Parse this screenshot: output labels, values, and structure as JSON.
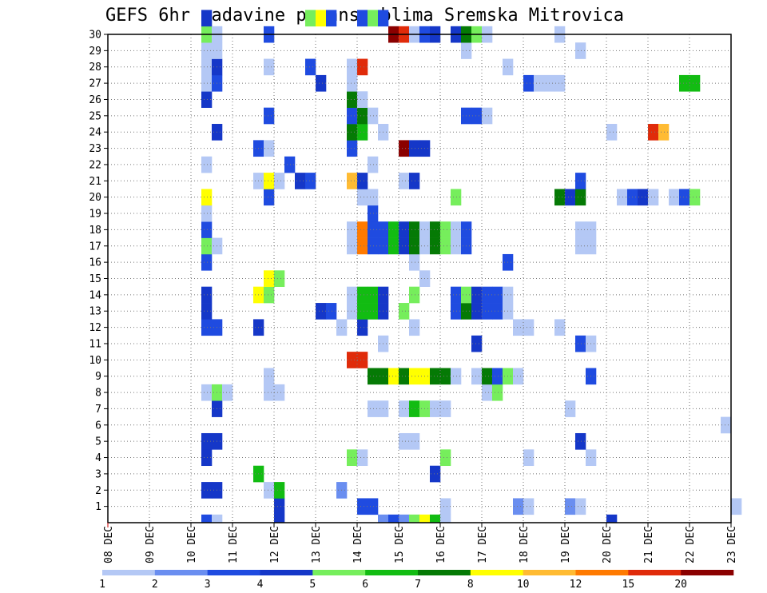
{
  "chart_data": {
    "type": "heatmap",
    "title": "GEFS 6hr padavine po ansamblima Sremska Mitrovica",
    "xlabel": "",
    "ylabel": "",
    "x_ticks": [
      "08 DEC",
      "09 DEC",
      "10 DEC",
      "11 DEC",
      "12 DEC",
      "13 DEC",
      "14 DEC",
      "15 DEC",
      "16 DEC",
      "17 DEC",
      "18 DEC",
      "19 DEC",
      "20 DEC",
      "21 DEC",
      "22 DEC",
      "23 DEC"
    ],
    "y_ticks": [
      "1",
      "2",
      "3",
      "4",
      "5",
      "6",
      "7",
      "8",
      "9",
      "10",
      "11",
      "12",
      "13",
      "14",
      "15",
      "16",
      "17",
      "18",
      "19",
      "20",
      "21",
      "22",
      "23",
      "24",
      "25",
      "26",
      "27",
      "28",
      "29",
      "30"
    ],
    "xlim_steps": [
      0,
      60
    ],
    "ylim_members": [
      0,
      30
    ],
    "grid": true,
    "colorbar": {
      "levels": [
        "1",
        "2",
        "3",
        "4",
        "5",
        "6",
        "7",
        "8",
        "10",
        "12",
        "15",
        "20"
      ],
      "colors": [
        "#b4c8f5",
        "#6a8ef0",
        "#1f4be0",
        "#1537c8",
        "#76ee5c",
        "#12bc12",
        "#057a05",
        "#ffff00",
        "#ffbb33",
        "#ff7a00",
        "#e02b0a",
        "#8b0000"
      ]
    },
    "cells": [
      [
        9,
        0,
        2
      ],
      [
        10,
        0,
        0
      ],
      [
        28,
        0,
        1
      ],
      [
        29,
        0,
        4
      ],
      [
        30,
        0,
        7
      ],
      [
        31,
        0,
        5
      ],
      [
        32,
        0,
        0
      ],
      [
        16,
        0,
        3
      ],
      [
        26,
        0,
        1
      ],
      [
        27,
        0,
        2
      ],
      [
        48,
        0,
        3
      ],
      [
        16,
        1,
        3
      ],
      [
        24,
        1,
        2
      ],
      [
        25,
        1,
        2
      ],
      [
        32,
        1,
        0
      ],
      [
        39,
        1,
        1
      ],
      [
        40,
        1,
        0
      ],
      [
        44,
        1,
        1
      ],
      [
        45,
        1,
        0
      ],
      [
        60,
        1,
        0
      ],
      [
        9,
        2,
        3
      ],
      [
        10,
        2,
        3
      ],
      [
        15,
        2,
        0
      ],
      [
        16,
        2,
        5
      ],
      [
        22,
        2,
        1
      ],
      [
        14,
        3,
        5
      ],
      [
        31,
        3,
        3
      ],
      [
        9,
        4,
        3
      ],
      [
        23,
        4,
        4
      ],
      [
        24,
        4,
        0
      ],
      [
        32,
        4,
        4
      ],
      [
        40,
        4,
        0
      ],
      [
        46,
        4,
        0
      ],
      [
        9,
        5,
        3
      ],
      [
        10,
        5,
        3
      ],
      [
        28,
        5,
        0
      ],
      [
        29,
        5,
        0
      ],
      [
        45,
        5,
        3
      ],
      [
        59,
        6,
        0
      ],
      [
        10,
        7,
        3
      ],
      [
        25,
        7,
        0
      ],
      [
        26,
        7,
        0
      ],
      [
        28,
        7,
        0
      ],
      [
        29,
        7,
        5
      ],
      [
        30,
        7,
        4
      ],
      [
        31,
        7,
        0
      ],
      [
        32,
        7,
        0
      ],
      [
        44,
        7,
        0
      ],
      [
        9,
        8,
        0
      ],
      [
        10,
        8,
        4
      ],
      [
        11,
        8,
        0
      ],
      [
        15,
        8,
        0
      ],
      [
        16,
        8,
        0
      ],
      [
        36,
        8,
        0
      ],
      [
        37,
        8,
        4
      ],
      [
        15,
        9,
        0
      ],
      [
        25,
        9,
        6
      ],
      [
        26,
        9,
        6
      ],
      [
        27,
        9,
        7
      ],
      [
        28,
        9,
        6
      ],
      [
        29,
        9,
        7
      ],
      [
        30,
        9,
        7
      ],
      [
        31,
        9,
        6
      ],
      [
        32,
        9,
        6
      ],
      [
        33,
        9,
        0
      ],
      [
        35,
        9,
        0
      ],
      [
        36,
        9,
        6
      ],
      [
        37,
        9,
        2
      ],
      [
        38,
        9,
        4
      ],
      [
        39,
        9,
        0
      ],
      [
        46,
        9,
        2
      ],
      [
        23,
        10,
        10
      ],
      [
        24,
        10,
        10
      ],
      [
        26,
        11,
        0
      ],
      [
        35,
        11,
        3
      ],
      [
        45,
        11,
        2
      ],
      [
        46,
        11,
        0
      ],
      [
        9,
        12,
        2
      ],
      [
        10,
        12,
        2
      ],
      [
        14,
        12,
        3
      ],
      [
        22,
        12,
        0
      ],
      [
        24,
        12,
        3
      ],
      [
        29,
        12,
        0
      ],
      [
        39,
        12,
        0
      ],
      [
        40,
        12,
        0
      ],
      [
        43,
        12,
        0
      ],
      [
        9,
        13,
        3
      ],
      [
        20,
        13,
        3
      ],
      [
        21,
        13,
        2
      ],
      [
        23,
        13,
        0
      ],
      [
        24,
        13,
        5
      ],
      [
        25,
        13,
        5
      ],
      [
        26,
        13,
        3
      ],
      [
        28,
        13,
        4
      ],
      [
        33,
        13,
        2
      ],
      [
        34,
        13,
        6
      ],
      [
        35,
        13,
        3
      ],
      [
        36,
        13,
        2
      ],
      [
        37,
        13,
        2
      ],
      [
        38,
        13,
        0
      ],
      [
        9,
        14,
        3
      ],
      [
        14,
        14,
        7
      ],
      [
        15,
        14,
        4
      ],
      [
        23,
        14,
        0
      ],
      [
        24,
        14,
        5
      ],
      [
        25,
        14,
        5
      ],
      [
        26,
        14,
        3
      ],
      [
        29,
        14,
        4
      ],
      [
        33,
        14,
        2
      ],
      [
        34,
        14,
        4
      ],
      [
        35,
        14,
        3
      ],
      [
        36,
        14,
        2
      ],
      [
        37,
        14,
        2
      ],
      [
        38,
        14,
        0
      ],
      [
        15,
        15,
        7
      ],
      [
        16,
        15,
        4
      ],
      [
        30,
        15,
        0
      ],
      [
        9,
        16,
        2
      ],
      [
        29,
        16,
        0
      ],
      [
        38,
        16,
        2
      ],
      [
        9,
        17,
        4
      ],
      [
        10,
        17,
        0
      ],
      [
        23,
        17,
        0
      ],
      [
        24,
        17,
        9
      ],
      [
        25,
        17,
        2
      ],
      [
        26,
        17,
        2
      ],
      [
        27,
        17,
        5
      ],
      [
        28,
        17,
        3
      ],
      [
        29,
        17,
        6
      ],
      [
        30,
        17,
        0
      ],
      [
        31,
        17,
        6
      ],
      [
        32,
        17,
        4
      ],
      [
        33,
        17,
        0
      ],
      [
        34,
        17,
        2
      ],
      [
        45,
        17,
        0
      ],
      [
        46,
        17,
        0
      ],
      [
        9,
        18,
        2
      ],
      [
        23,
        18,
        0
      ],
      [
        24,
        18,
        9
      ],
      [
        25,
        18,
        2
      ],
      [
        26,
        18,
        2
      ],
      [
        27,
        18,
        5
      ],
      [
        28,
        18,
        3
      ],
      [
        29,
        18,
        6
      ],
      [
        30,
        18,
        0
      ],
      [
        31,
        18,
        6
      ],
      [
        32,
        18,
        4
      ],
      [
        33,
        18,
        0
      ],
      [
        34,
        18,
        2
      ],
      [
        45,
        18,
        0
      ],
      [
        46,
        18,
        0
      ],
      [
        9,
        19,
        0
      ],
      [
        25,
        19,
        2
      ],
      [
        9,
        20,
        7
      ],
      [
        15,
        20,
        2
      ],
      [
        24,
        20,
        0
      ],
      [
        25,
        20,
        0
      ],
      [
        33,
        20,
        4
      ],
      [
        43,
        20,
        6
      ],
      [
        44,
        20,
        3
      ],
      [
        45,
        20,
        6
      ],
      [
        49,
        20,
        0
      ],
      [
        50,
        20,
        2
      ],
      [
        51,
        20,
        3
      ],
      [
        52,
        20,
        0
      ],
      [
        54,
        20,
        0
      ],
      [
        55,
        20,
        2
      ],
      [
        56,
        20,
        4
      ],
      [
        14,
        21,
        0
      ],
      [
        15,
        21,
        7
      ],
      [
        16,
        21,
        0
      ],
      [
        18,
        21,
        3
      ],
      [
        19,
        21,
        2
      ],
      [
        23,
        21,
        8
      ],
      [
        24,
        21,
        3
      ],
      [
        28,
        21,
        0
      ],
      [
        29,
        21,
        3
      ],
      [
        45,
        21,
        2
      ],
      [
        9,
        22,
        0
      ],
      [
        17,
        22,
        2
      ],
      [
        25,
        22,
        0
      ],
      [
        14,
        23,
        2
      ],
      [
        15,
        23,
        0
      ],
      [
        23,
        23,
        2
      ],
      [
        28,
        23,
        11
      ],
      [
        29,
        23,
        3
      ],
      [
        30,
        23,
        3
      ],
      [
        10,
        24,
        3
      ],
      [
        23,
        24,
        6
      ],
      [
        24,
        24,
        5
      ],
      [
        26,
        24,
        0
      ],
      [
        48,
        24,
        0
      ],
      [
        52,
        24,
        10
      ],
      [
        53,
        24,
        8
      ],
      [
        15,
        25,
        2
      ],
      [
        23,
        25,
        2
      ],
      [
        24,
        25,
        6
      ],
      [
        25,
        25,
        0
      ],
      [
        34,
        25,
        2
      ],
      [
        35,
        25,
        2
      ],
      [
        36,
        25,
        0
      ],
      [
        9,
        26,
        3
      ],
      [
        23,
        26,
        6
      ],
      [
        24,
        26,
        0
      ],
      [
        9,
        27,
        0
      ],
      [
        10,
        27,
        2
      ],
      [
        20,
        27,
        3
      ],
      [
        23,
        27,
        0
      ],
      [
        40,
        27,
        2
      ],
      [
        41,
        27,
        0
      ],
      [
        42,
        27,
        0
      ],
      [
        43,
        27,
        0
      ],
      [
        55,
        27,
        5
      ],
      [
        56,
        27,
        5
      ],
      [
        9,
        28,
        0
      ],
      [
        10,
        28,
        3
      ],
      [
        15,
        28,
        0
      ],
      [
        19,
        28,
        2
      ],
      [
        23,
        28,
        0
      ],
      [
        24,
        28,
        10
      ],
      [
        38,
        28,
        0
      ],
      [
        9,
        29,
        0
      ],
      [
        10,
        29,
        0
      ],
      [
        34,
        29,
        0
      ],
      [
        45,
        29,
        0
      ],
      [
        9,
        30,
        4
      ],
      [
        10,
        30,
        0
      ],
      [
        15,
        30,
        2
      ],
      [
        27,
        30,
        11
      ],
      [
        28,
        30,
        10
      ],
      [
        29,
        30,
        0
      ],
      [
        30,
        30,
        2
      ],
      [
        31,
        30,
        3
      ],
      [
        33,
        30,
        3
      ],
      [
        34,
        30,
        6
      ],
      [
        35,
        30,
        4
      ],
      [
        36,
        30,
        0
      ],
      [
        43,
        30,
        0
      ],
      [
        9,
        31,
        3
      ],
      [
        19,
        31,
        4
      ],
      [
        20,
        31,
        7
      ],
      [
        21,
        31,
        2
      ],
      [
        24,
        31,
        2
      ],
      [
        25,
        31,
        4
      ],
      [
        26,
        31,
        2
      ]
    ]
  }
}
